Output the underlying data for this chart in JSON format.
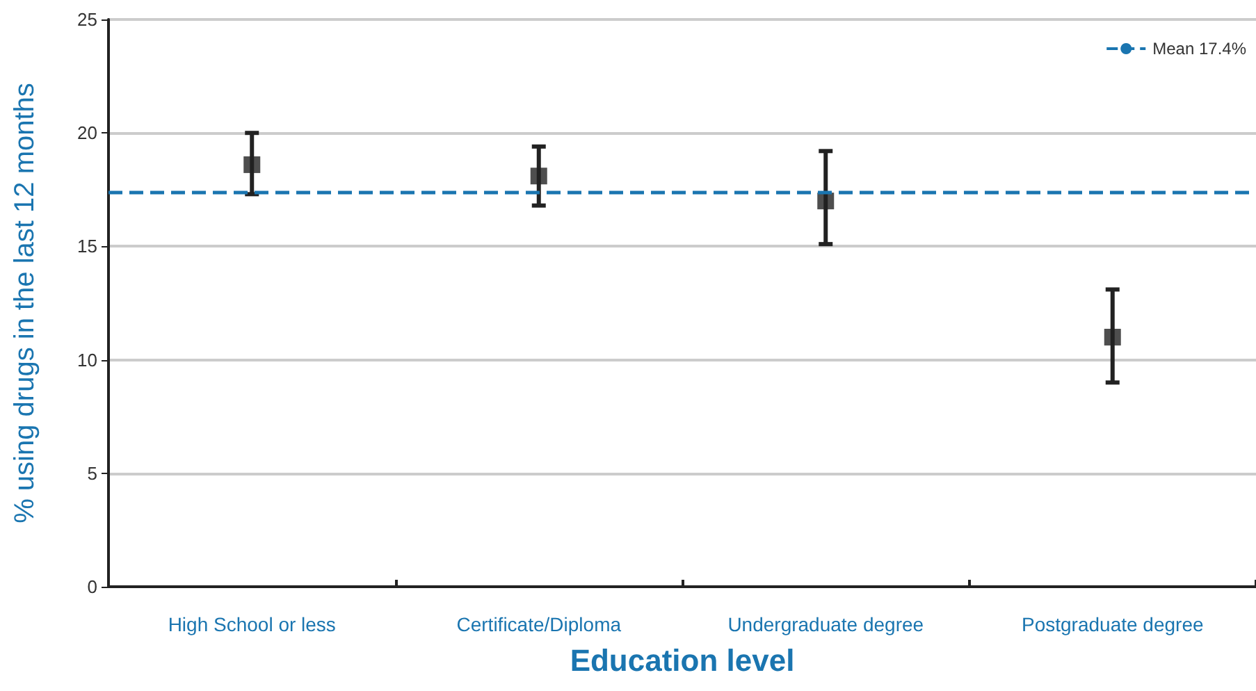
{
  "chart_data": {
    "type": "scatter",
    "xlabel": "Education level",
    "ylabel": "% using drugs in the last 12 months",
    "categories": [
      "High School or less",
      "Certificate/Diploma",
      "Undergraduate degree",
      "Postgraduate degree"
    ],
    "values": [
      18.6,
      18.1,
      17.0,
      11.0
    ],
    "errors": [
      [
        17.3,
        20.0
      ],
      [
        16.8,
        19.4
      ],
      [
        15.1,
        19.2
      ],
      [
        9.0,
        13.1
      ]
    ],
    "color": "#222222",
    "marker": "square",
    "ylim": [
      0,
      25
    ],
    "yticks": [
      0,
      5,
      10,
      15,
      20,
      25
    ],
    "grid": "y",
    "legend": "top right",
    "ref_lines": [
      {
        "axis": "y",
        "value": 17.4,
        "label": "Mean 17.4%",
        "color": "#1a75b0",
        "line_style": "dashed"
      }
    ]
  }
}
